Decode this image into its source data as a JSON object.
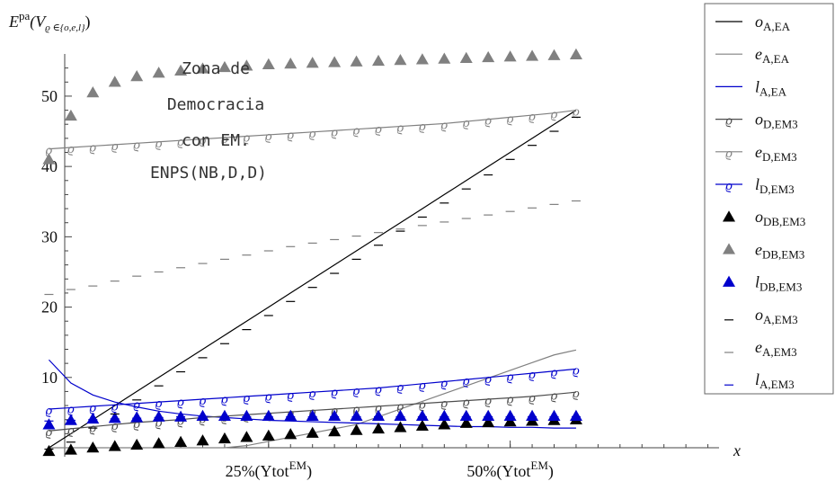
{
  "chart_data": {
    "type": "scatter",
    "ylabel_main": "E",
    "ylabel_sup": "pa",
    "ylabel_args": "(V",
    "ylabel_sub": "ϱ ∈{o,e,l}",
    "ylabel_close": ")",
    "xlabel": "x",
    "annotation_lines": [
      "Zona de",
      "Democracia",
      "con EM.",
      "ENPS(NB,D,D)"
    ],
    "xlim": [
      0,
      16
    ],
    "ylim": [
      0,
      56
    ],
    "x_ticks": [
      {
        "x": 5.5,
        "main": "25%(Ytot",
        "sup": "EM",
        "close": ")"
      },
      {
        "x": 11,
        "main": "50%(Ytot",
        "sup": "EM",
        "close": ")"
      }
    ],
    "y_ticks": [
      10,
      20,
      30,
      40,
      50
    ],
    "colors": {
      "black": "#000000",
      "gray": "#808080",
      "blue": "#0000cc",
      "dark_gray": "#4d4d4d"
    },
    "x": [
      0.5,
      1,
      1.5,
      2,
      2.5,
      3,
      3.5,
      4,
      4.5,
      5,
      5.5,
      6,
      6.5,
      7,
      7.5,
      8,
      8.5,
      9,
      9.5,
      10,
      10.5,
      11,
      11.5,
      12,
      12.5
    ],
    "series": [
      {
        "name": "o",
        "sub": "A,EA",
        "marker": "line",
        "color": "black",
        "values": [
          0,
          2,
          4,
          6,
          8,
          10,
          12,
          14,
          16,
          18,
          20,
          22,
          24,
          26,
          28,
          30,
          32,
          34,
          36,
          38,
          40,
          42,
          44,
          46,
          48
        ]
      },
      {
        "name": "e",
        "sub": "A,EA",
        "marker": "line",
        "color": "gray",
        "values": [
          0,
          0,
          0,
          0,
          0,
          0,
          0,
          0,
          0,
          0.3,
          0.9,
          1.5,
          2.1,
          2.7,
          3.3,
          4.4,
          5.5,
          6.6,
          7.7,
          8.8,
          9.9,
          11,
          12.1,
          13.2,
          13.9
        ]
      },
      {
        "name": "l",
        "sub": "A,EA",
        "marker": "line",
        "color": "blue",
        "values": [
          12.5,
          9.2,
          7.5,
          6.5,
          5.8,
          5.2,
          4.8,
          4.5,
          4.3,
          4.1,
          3.9,
          3.8,
          3.7,
          3.6,
          3.5,
          3.4,
          3.3,
          3.2,
          3.1,
          3.0,
          3.0,
          2.9,
          2.9,
          2.8,
          2.8
        ]
      },
      {
        "name": "o",
        "sub": "D,EM3",
        "marker": "varrho-line",
        "color": "dark_gray",
        "values": [
          2.4,
          2.7,
          3.0,
          3.3,
          3.6,
          3.8,
          4.0,
          4.3,
          4.5,
          4.7,
          4.9,
          5.1,
          5.3,
          5.5,
          5.7,
          5.9,
          6.1,
          6.3,
          6.5,
          6.7,
          6.9,
          7.1,
          7.3,
          7.6,
          7.9
        ]
      },
      {
        "name": "e",
        "sub": "D,EM3",
        "marker": "varrho-line",
        "color": "gray",
        "values": [
          42.5,
          42.7,
          42.9,
          43.1,
          43.3,
          43.5,
          43.7,
          43.9,
          44.1,
          44.3,
          44.5,
          44.7,
          44.9,
          45.1,
          45.3,
          45.5,
          45.7,
          45.9,
          46.1,
          46.4,
          46.7,
          47.0,
          47.3,
          47.6,
          48.0
        ]
      },
      {
        "name": "l",
        "sub": "D,EM3",
        "marker": "varrho-line",
        "color": "blue",
        "values": [
          5.5,
          5.7,
          5.9,
          6.1,
          6.3,
          6.5,
          6.7,
          6.9,
          7.1,
          7.3,
          7.5,
          7.7,
          7.9,
          8.1,
          8.3,
          8.5,
          8.8,
          9.1,
          9.4,
          9.7,
          10.0,
          10.3,
          10.6,
          10.9,
          11.2
        ]
      },
      {
        "name": "o",
        "sub": "DB,EM3",
        "marker": "triangle",
        "color": "black",
        "values": [
          -0.5,
          -0.3,
          0,
          0.2,
          0.4,
          0.6,
          0.8,
          1.0,
          1.3,
          1.5,
          1.7,
          1.9,
          2.1,
          2.3,
          2.5,
          2.7,
          2.9,
          3.1,
          3.3,
          3.5,
          3.6,
          3.7,
          3.8,
          3.9,
          4.0
        ]
      },
      {
        "name": "e",
        "sub": "DB,EM3",
        "marker": "triangle",
        "color": "gray",
        "values": [
          41,
          47.2,
          50.5,
          52,
          52.8,
          53.3,
          53.6,
          53.9,
          54.1,
          54.3,
          54.5,
          54.6,
          54.7,
          54.8,
          54.9,
          55.0,
          55.1,
          55.2,
          55.3,
          55.4,
          55.5,
          55.6,
          55.7,
          55.8,
          55.9
        ]
      },
      {
        "name": "l",
        "sub": "DB,EM3",
        "marker": "triangle",
        "color": "blue",
        "values": [
          3.3,
          3.9,
          4.1,
          4.2,
          4.3,
          4.4,
          4.4,
          4.5,
          4.5,
          4.5,
          4.5,
          4.5,
          4.5,
          4.5,
          4.5,
          4.5,
          4.5,
          4.5,
          4.5,
          4.5,
          4.5,
          4.5,
          4.5,
          4.5,
          4.5
        ]
      },
      {
        "name": "o",
        "sub": "A,EM3",
        "marker": "dash",
        "color": "black",
        "values": [
          -0.2,
          0.8,
          2.8,
          4.8,
          6.8,
          8.8,
          10.8,
          12.8,
          14.8,
          16.8,
          18.8,
          20.8,
          22.8,
          24.8,
          26.8,
          28.8,
          30.8,
          32.8,
          34.8,
          36.8,
          38.8,
          41.0,
          43.0,
          45.0,
          47.0
        ]
      },
      {
        "name": "e",
        "sub": "A,EM3",
        "marker": "dash",
        "color": "gray",
        "values": [
          21.8,
          22.5,
          23.0,
          23.7,
          24.4,
          25.0,
          25.6,
          26.2,
          26.8,
          27.4,
          28.0,
          28.6,
          29.1,
          29.6,
          30.1,
          30.6,
          31.1,
          31.6,
          32.1,
          32.6,
          33.1,
          33.6,
          34.1,
          34.6,
          35.1
        ]
      },
      {
        "name": "l",
        "sub": "A,EM3",
        "marker": "dash",
        "color": "blue",
        "values": [
          3.8,
          3.9,
          4.0,
          4.1,
          4.2,
          4.3,
          4.4,
          4.4,
          4.4,
          4.4,
          4.4,
          4.4,
          4.4,
          4.4,
          4.4,
          4.4,
          4.4,
          4.4,
          4.4,
          4.4,
          4.4,
          4.4,
          4.4,
          4.4,
          4.4
        ]
      }
    ],
    "legend_position": "right"
  }
}
